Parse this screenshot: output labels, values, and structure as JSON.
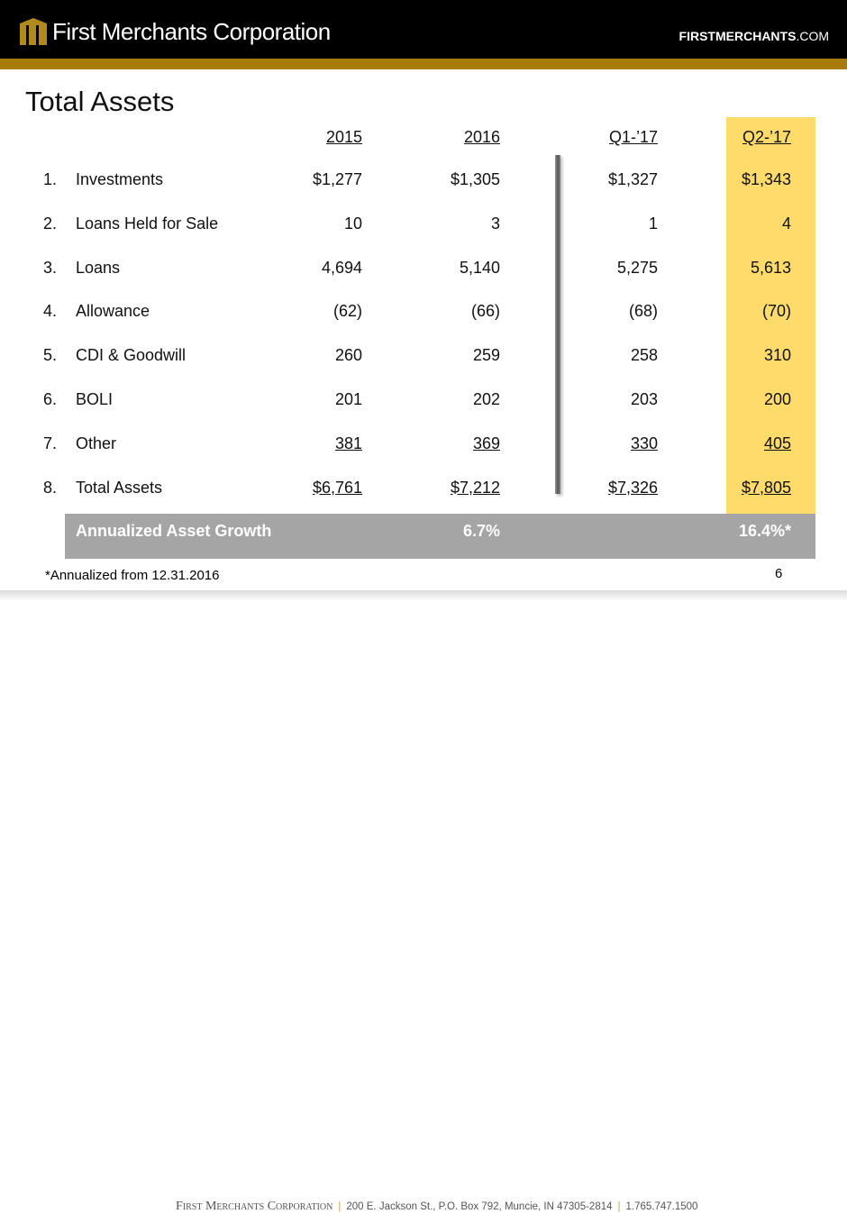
{
  "header": {
    "logo_text": "First Merchants Corporation",
    "site": "FIRSTMERCHANTS",
    "site_suffix": ".COM"
  },
  "title": "Total Assets",
  "columns": [
    "2015",
    "2016",
    "Q1-’17",
    "Q2-’17"
  ],
  "rows": [
    {
      "num": "1.",
      "label": "Investments",
      "values": [
        "$1,277",
        "$1,305",
        "$1,327",
        "$1,343"
      ]
    },
    {
      "num": "2.",
      "label": "Loans Held for Sale",
      "values": [
        "10",
        "3",
        "1",
        "4"
      ]
    },
    {
      "num": "3.",
      "label": "Loans",
      "values": [
        "4,694",
        "5,140",
        "5,275",
        "5,613"
      ]
    },
    {
      "num": "4.",
      "label": "Allowance",
      "values": [
        "(62)",
        "(66)",
        "(68)",
        "(70)"
      ]
    },
    {
      "num": "5.",
      "label": "CDI & Goodwill",
      "values": [
        "260",
        "259",
        "258",
        "310"
      ]
    },
    {
      "num": "6.",
      "label": "BOLI",
      "values": [
        "201",
        "202",
        "203",
        "200"
      ]
    },
    {
      "num": "7.",
      "label": "Other",
      "values": [
        "381",
        "369",
        "330",
        "405"
      ]
    },
    {
      "num": "8.",
      "label": "Total Assets",
      "values": [
        "$6,761",
        "$7,212",
        "$7,326",
        "$7,805"
      ]
    }
  ],
  "growth": {
    "label": "Annualized Asset Growth",
    "v2016": "6.7%",
    "vQ2": "16.4%*"
  },
  "footnote": "*Annualized from 12.31.2016",
  "page": "6",
  "footer": {
    "company": "First Merchants Corporation",
    "address": "200 E. Jackson St., P.O. Box 792, Muncie, IN 47305-2814",
    "phone": "1.765.747.1500"
  },
  "colors": {
    "gold": "#a87c0c",
    "highlight": "#fedb6b",
    "growth_bar": "#a5a5a5"
  }
}
